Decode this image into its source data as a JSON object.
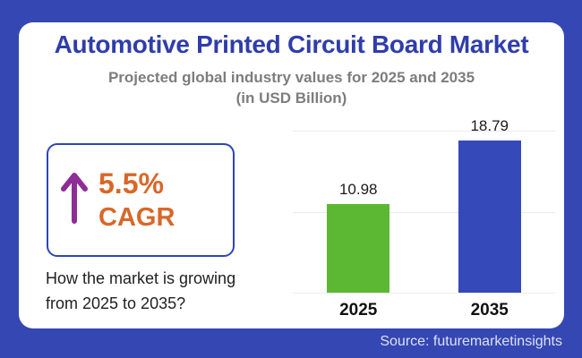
{
  "page": {
    "title": "Automotive Printed Circuit Board Market",
    "subtitle_line1": "Projected global industry values for 2025 and 2035",
    "subtitle_line2": "(in USD Billion)",
    "question_line1": "How the market is growing",
    "question_line2": "from 2025 to 2035?",
    "source": "Source: futuremarketinsights"
  },
  "cagr": {
    "value": "5.5%",
    "label": "CAGR",
    "arrow_icon": "up-arrow",
    "arrow_color": "#8e2d96",
    "text_color": "#d96729",
    "border_color": "#2e46b5"
  },
  "colors": {
    "frame_blue": "#3547b2",
    "title_blue": "#2f3dab",
    "subtitle_gray": "#7d7d7d",
    "bar_green": "#5cb733",
    "bar_blue": "#3549b9",
    "gridline": "#ececec",
    "source_text": "#dde1f3"
  },
  "chart_data": {
    "type": "bar",
    "title": "Automotive Printed Circuit Board Market",
    "subtitle": "Projected global industry values for 2025 and 2035 (in USD Billion)",
    "categories": [
      "2025",
      "2035"
    ],
    "values": [
      10.98,
      18.79
    ],
    "value_labels": [
      "10.98",
      "18.79"
    ],
    "bar_colors": [
      "#5cb733",
      "#3549b9"
    ],
    "xlabel": "",
    "ylabel": "USD Billion",
    "ylim": [
      0,
      20
    ],
    "gridlines": [
      0,
      10,
      20
    ],
    "grid": "horizontal",
    "legend_position": "none"
  }
}
